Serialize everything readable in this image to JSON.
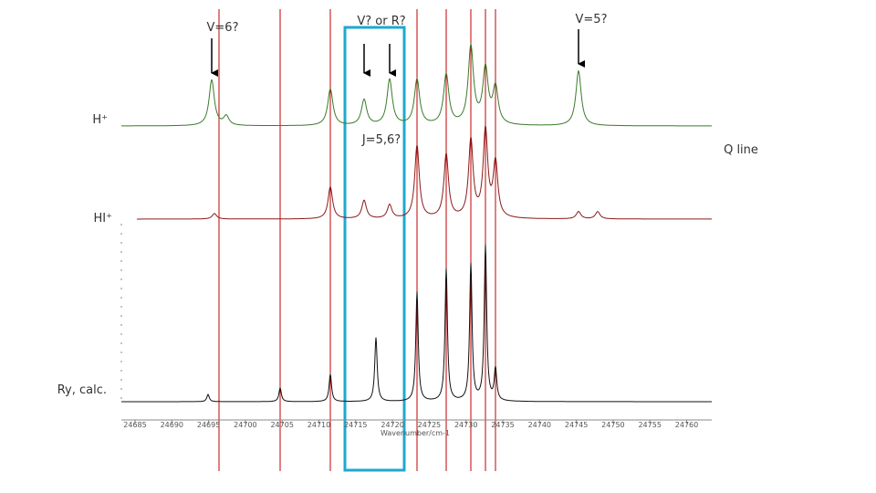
{
  "annotations": {
    "v6": "V=6?",
    "v_or_r": "V? or R?",
    "v5": "V=5?",
    "j56": "J=5,6?",
    "q_line": "Q line"
  },
  "traces": {
    "h_plus": "H⁺",
    "hi_plus": "HI⁺",
    "ry_calc": "Ry, calc."
  },
  "axis": {
    "label": "Wavenumber/cm-1",
    "ticks": [
      "24685",
      "24690",
      "24695",
      "24700",
      "24705",
      "24710",
      "24715",
      "24720",
      "24725",
      "24730",
      "24735",
      "24740",
      "24745",
      "24750",
      "24755",
      "24760"
    ]
  }
}
